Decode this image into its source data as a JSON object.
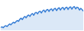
{
  "chart_data": {
    "type": "area",
    "color": "#3a7fd5",
    "tick_labels": false,
    "grid": false,
    "ylim": [
      0,
      100
    ],
    "values": [
      10,
      12,
      9,
      14,
      16,
      13,
      18,
      22,
      19,
      24,
      28,
      25,
      30,
      34,
      31,
      38,
      42,
      37,
      44,
      48,
      43,
      50,
      53,
      48,
      55,
      58,
      52,
      60,
      62,
      57,
      64,
      66,
      60,
      67,
      70,
      63,
      70,
      72,
      65,
      72,
      74,
      67,
      74,
      76,
      68,
      75,
      78,
      70,
      77,
      79,
      71,
      78,
      80,
      72,
      79,
      81,
      73,
      80,
      82,
      74,
      80,
      78,
      70,
      76,
      72,
      66
    ]
  }
}
